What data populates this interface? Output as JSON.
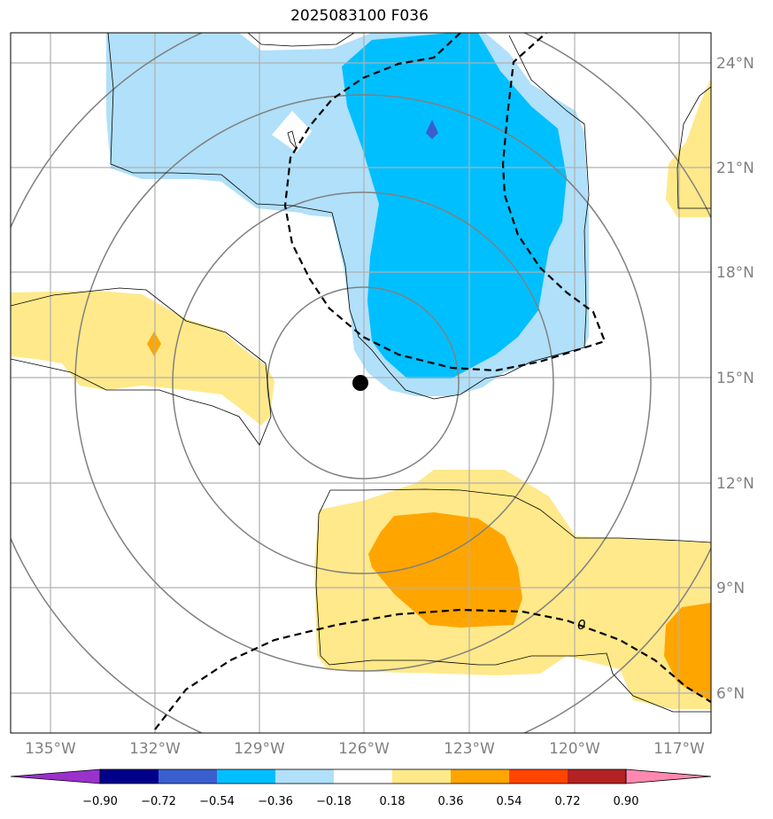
{
  "title": "2025083100 F036",
  "map": {
    "lat_labels": [
      "6°N",
      "9°N",
      "12°N",
      "15°N",
      "18°N",
      "21°N",
      "24°N"
    ],
    "lon_labels": [
      "135°W",
      "132°W",
      "129°W",
      "126°W",
      "123°W",
      "120°W",
      "117°W"
    ],
    "zero_contour_label": "0",
    "center_marker": {
      "lon": -126.1,
      "lat": 14.9
    }
  },
  "colorbar": {
    "labels": [
      "−0.90",
      "−0.72",
      "−0.54",
      "−0.36",
      "−0.18",
      "0.18",
      "0.36",
      "0.54",
      "0.72",
      "0.90"
    ],
    "colors": [
      "#9932cc",
      "#00008b",
      "#3a5fcd",
      "#00bfff",
      "#b0e0fa",
      "#ffffff",
      "#ffe98a",
      "#ffa500",
      "#ff4500",
      "#b22222",
      "#ff88b0"
    ]
  },
  "fill_colors": {
    "light_blue": "#b0e0fa",
    "deep_sky_blue": "#00bfff",
    "royal_blue": "#3a5fcd",
    "light_yellow": "#ffe98a",
    "orange": "#ffa500"
  }
}
